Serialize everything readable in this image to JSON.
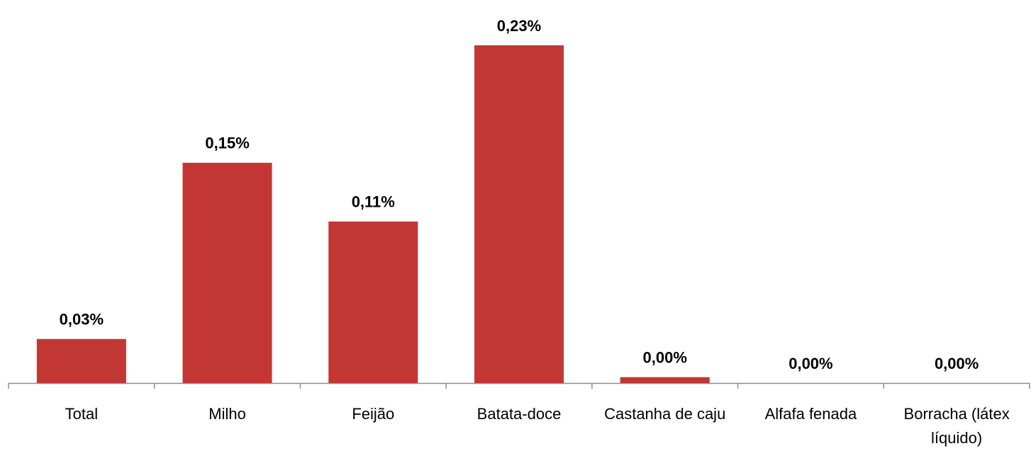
{
  "chart_data": {
    "type": "bar",
    "categories": [
      "Total",
      "Milho",
      "Feijão",
      "Batata-doce",
      "Castanha de caju",
      "Alfafa fenada",
      "Borracha (látex líquido)"
    ],
    "values": [
      0.03,
      0.15,
      0.11,
      0.23,
      0.004,
      0,
      0
    ],
    "value_labels": [
      "0,03%",
      "0,15%",
      "0,11%",
      "0,23%",
      "0,00%",
      "0,00%",
      "0,00%"
    ],
    "color": "#c23734"
  }
}
